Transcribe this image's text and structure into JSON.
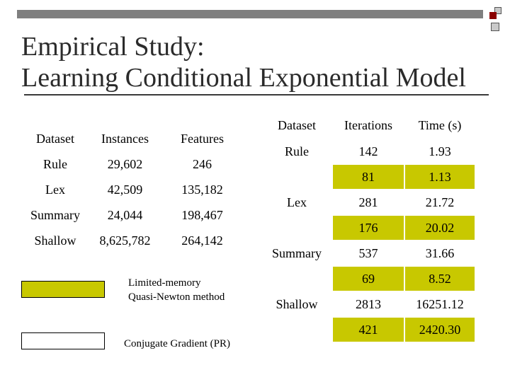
{
  "title": {
    "line1": "Empirical Study:",
    "line2": "Learning Conditional Exponential Model"
  },
  "colors": {
    "highlight": "#c8c800",
    "title_text": "#2b2b2b",
    "bar": "#7f7f7f"
  },
  "left_table": {
    "headers": [
      "Dataset",
      "Instances",
      "Features"
    ],
    "rows": [
      [
        "Rule",
        "29,602",
        "246"
      ],
      [
        "Lex",
        "42,509",
        "135,182"
      ],
      [
        "Summary",
        "24,044",
        "198,467"
      ],
      [
        "Shallow",
        "8,625,782",
        "264,142"
      ]
    ]
  },
  "right_table": {
    "headers": [
      "Dataset",
      "Iterations",
      "Time (s)"
    ],
    "groups": [
      {
        "dataset": "Rule",
        "rows": [
          [
            "142",
            "1.93"
          ],
          [
            "81",
            "1.13"
          ]
        ]
      },
      {
        "dataset": "Lex",
        "rows": [
          [
            "281",
            "21.72"
          ],
          [
            "176",
            "20.02"
          ]
        ]
      },
      {
        "dataset": "Summary",
        "rows": [
          [
            "537",
            "31.66"
          ],
          [
            "69",
            "8.52"
          ]
        ]
      },
      {
        "dataset": "Shallow",
        "rows": [
          [
            "2813",
            "16251.12"
          ],
          [
            "421",
            "2420.30"
          ]
        ]
      }
    ]
  },
  "legend": {
    "lbfgs_line1": "Limited-memory",
    "lbfgs_line2": "Quasi-Newton method",
    "cg": "Conjugate Gradient (PR)"
  }
}
